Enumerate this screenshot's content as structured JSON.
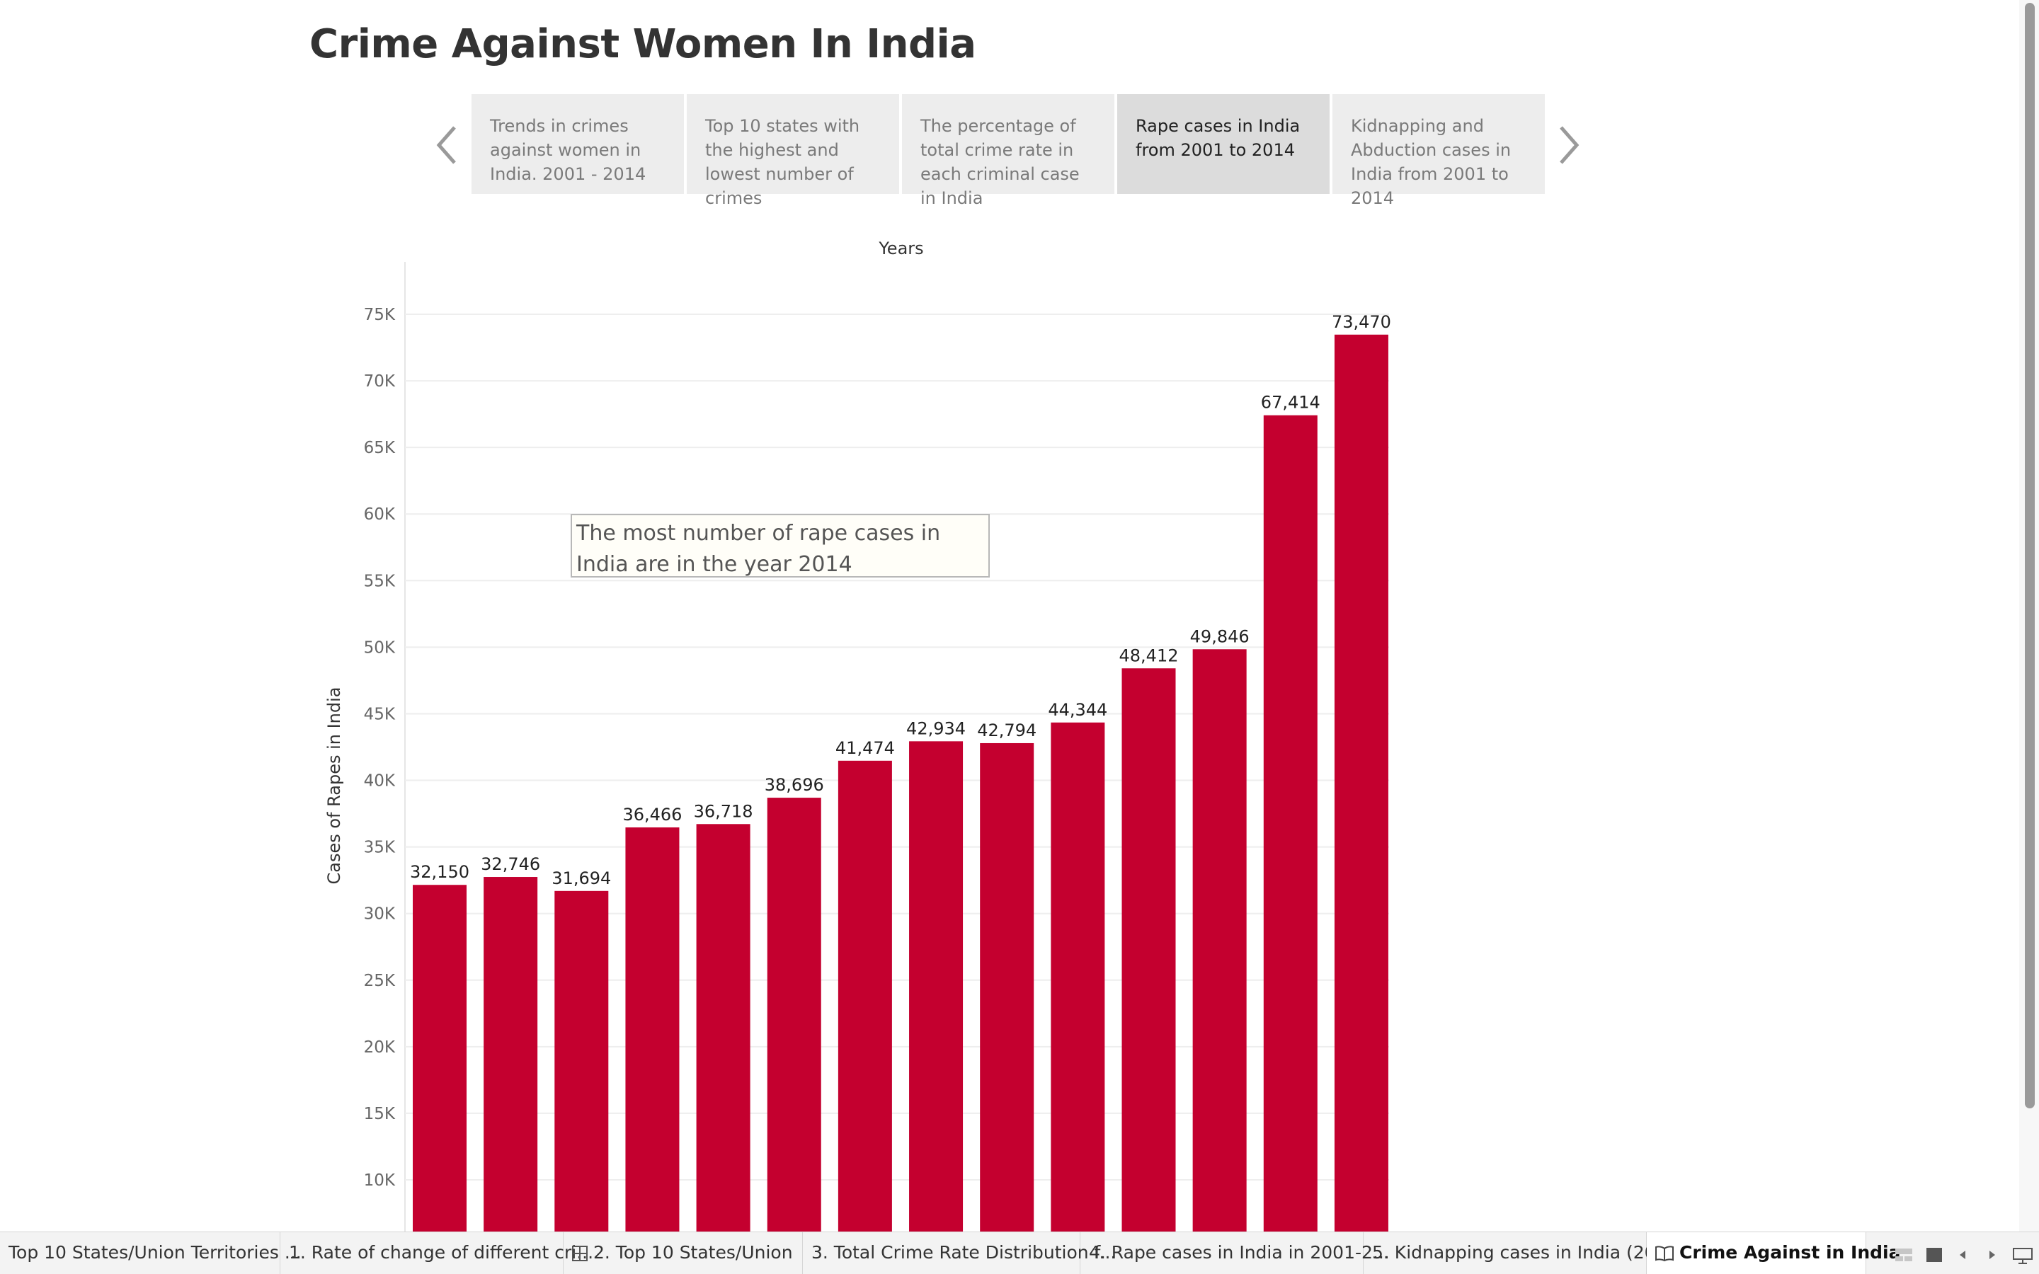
{
  "dashboard": {
    "title": "Crime Against Women In India"
  },
  "story": {
    "points": [
      {
        "label": "Trends in crimes against women in India. 2001 - 2014",
        "active": false
      },
      {
        "label": "Top 10 states with the highest and lowest number of crimes",
        "active": false
      },
      {
        "label": "The percentage of total crime rate in each criminal case in India",
        "active": false
      },
      {
        "label": "Rape cases in India from 2001 to 2014",
        "active": true
      },
      {
        "label": "Kidnapping and Abduction cases in India from 2001 to 2014",
        "active": false
      }
    ]
  },
  "annotation": {
    "text": "The most number of rape cases in India are in the year 2014"
  },
  "chart_data": {
    "type": "bar",
    "title": "",
    "xlabel": "Years",
    "ylabel": "Cases of Rapes in India",
    "values": [
      32150,
      32746,
      31694,
      36466,
      36718,
      38696,
      41474,
      42934,
      42794,
      44344,
      48412,
      49846,
      67414,
      73470
    ],
    "data_labels": [
      "32,150",
      "32,746",
      "31,694",
      "36,466",
      "36,718",
      "38,696",
      "41,474",
      "42,934",
      "42,794",
      "44,344",
      "48,412",
      "49,846",
      "67,414",
      "73,470"
    ],
    "y_ticks": [
      "10K",
      "15K",
      "20K",
      "25K",
      "30K",
      "35K",
      "40K",
      "45K",
      "50K",
      "55K",
      "60K",
      "65K",
      "70K",
      "75K"
    ],
    "y_tick_values": [
      10000,
      15000,
      20000,
      25000,
      30000,
      35000,
      40000,
      45000,
      50000,
      55000,
      60000,
      65000,
      70000,
      75000
    ],
    "ylim": [
      6500,
      78000
    ],
    "bar_color": "#c4002f",
    "grid": true
  },
  "sheet_tabs": [
    {
      "label": "Top 10 States/Union Territories ...",
      "icon": "",
      "active": false
    },
    {
      "label": "1. Rate of change of different cri...",
      "icon": "",
      "active": false
    },
    {
      "label": "2. Top 10 States/Union",
      "icon": "grid-icon",
      "active": false
    },
    {
      "label": "3. Total Crime Rate Distribution f...",
      "icon": "",
      "active": false
    },
    {
      "label": "4. Rape cases in India in 2001-2...",
      "icon": "",
      "active": false
    },
    {
      "label": "5. Kidnapping cases in India (20...",
      "icon": "",
      "active": false
    },
    {
      "label": "Crime Against in India",
      "icon": "story-book-icon",
      "active": true
    }
  ],
  "icons": {
    "nav_prev": "chevron-left-icon",
    "nav_next": "chevron-right-icon",
    "controls": [
      "sheet-sorter-icon",
      "filmstrip-icon",
      "tab-prev-icon",
      "tab-next-icon",
      "presentation-mode-icon"
    ]
  }
}
